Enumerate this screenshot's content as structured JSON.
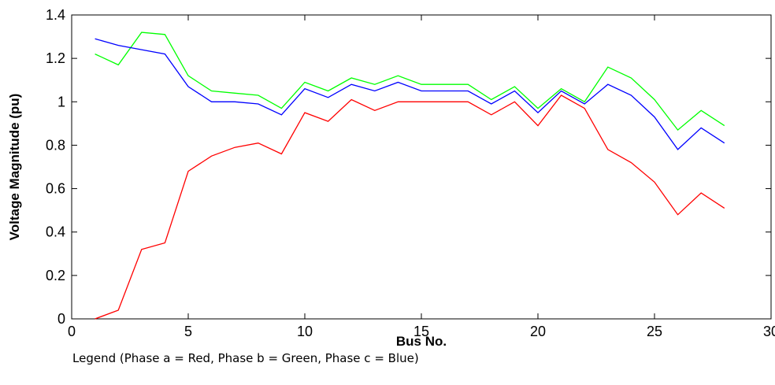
{
  "chart_data": {
    "type": "line",
    "xlabel": "Bus No.",
    "ylabel": "Voltage Magnitude (pu)",
    "xlim": [
      0,
      30
    ],
    "ylim": [
      0,
      1.4
    ],
    "xticks": [
      "0",
      "5",
      "10",
      "15",
      "20",
      "25",
      "30"
    ],
    "yticks": [
      "0",
      "0.2",
      "0.4",
      "0.6",
      "0.8",
      "1",
      "1.2",
      "1.4"
    ],
    "grid": false,
    "legend_text": "Legend (Phase a = Red, Phase b = Green, Phase c = Blue)",
    "series": [
      {
        "color": "#ff0000",
        "x": [
          1,
          2,
          3,
          4,
          5,
          6,
          7,
          8,
          9,
          10,
          11,
          12,
          13,
          14,
          15,
          16,
          17,
          18,
          19,
          20,
          21,
          22,
          23,
          24,
          25,
          26,
          27,
          28
        ],
        "y": [
          0,
          0.04,
          0.32,
          0.35,
          0.68,
          0.75,
          0.79,
          0.81,
          0.76,
          0.95,
          0.91,
          1.01,
          0.96,
          1.0,
          1.0,
          1.0,
          1.0,
          0.94,
          1.0,
          0.89,
          1.03,
          0.97,
          0.78,
          0.72,
          0.63,
          0.48,
          0.58,
          0.51
        ]
      },
      {
        "color": "#00ff00",
        "x": [
          1,
          2,
          3,
          4,
          5,
          6,
          7,
          8,
          9,
          10,
          11,
          12,
          13,
          14,
          15,
          16,
          17,
          18,
          19,
          20,
          21,
          22,
          23,
          24,
          25,
          26,
          27,
          28
        ],
        "y": [
          1.22,
          1.17,
          1.32,
          1.31,
          1.12,
          1.05,
          1.04,
          1.03,
          0.97,
          1.09,
          1.05,
          1.11,
          1.08,
          1.12,
          1.08,
          1.08,
          1.08,
          1.01,
          1.07,
          0.97,
          1.06,
          1.0,
          1.16,
          1.11,
          1.01,
          0.87,
          0.96,
          0.89
        ]
      },
      {
        "color": "#0000ff",
        "x": [
          1,
          2,
          3,
          4,
          5,
          6,
          7,
          8,
          9,
          10,
          11,
          12,
          13,
          14,
          15,
          16,
          17,
          18,
          19,
          20,
          21,
          22,
          23,
          24,
          25,
          26,
          27,
          28
        ],
        "y": [
          1.29,
          1.26,
          1.24,
          1.22,
          1.07,
          1.0,
          1.0,
          0.99,
          0.94,
          1.06,
          1.02,
          1.08,
          1.05,
          1.09,
          1.05,
          1.05,
          1.05,
          0.99,
          1.05,
          0.95,
          1.05,
          0.99,
          1.08,
          1.03,
          0.93,
          0.78,
          0.88,
          0.81
        ]
      }
    ]
  }
}
